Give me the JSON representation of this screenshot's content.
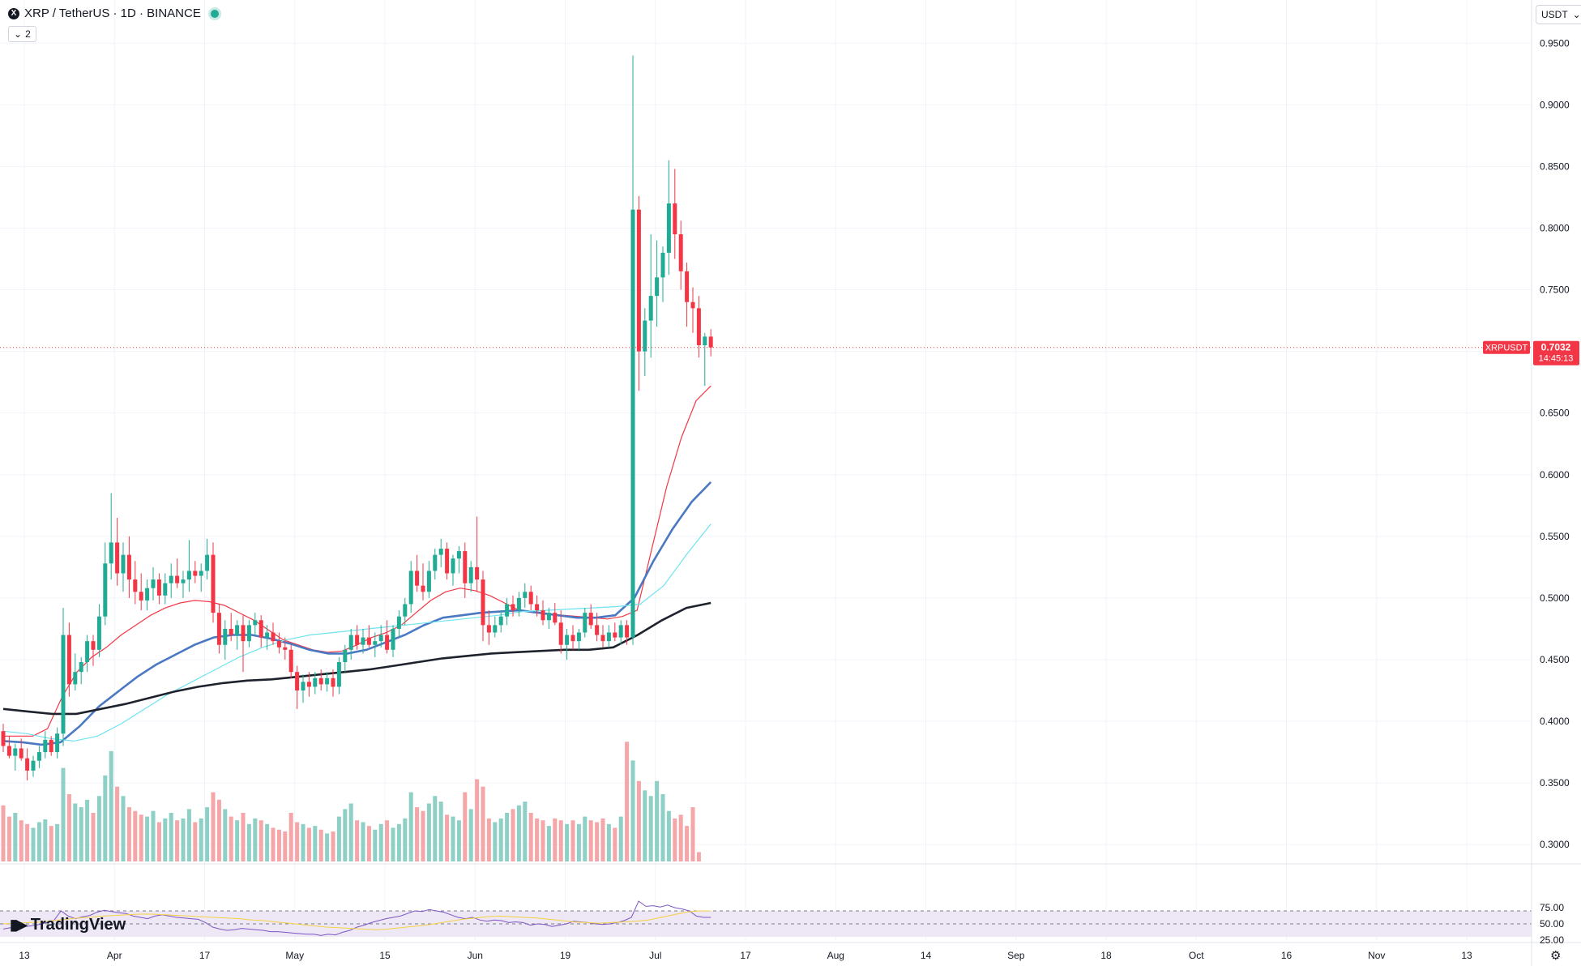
{
  "header": {
    "symbol_logo": "X",
    "title": "XRP / TetherUS · 1D · BINANCE",
    "indicator_count": "2",
    "collapse_icon": "chevron-down-icon",
    "status_color": "#22ab94"
  },
  "currency_selector": {
    "label": "USDT",
    "icon": "chevron-down-icon"
  },
  "price_label": {
    "symbol": "XRPUSDT",
    "price": "0.7032",
    "countdown": "14:45:13",
    "color": "#f23645"
  },
  "branding": {
    "name": "TradingView"
  },
  "settings_icon": "gear-icon",
  "colors": {
    "up": "#22ab94",
    "down": "#f23645",
    "vol_up": "#8fd0c6",
    "vol_down": "#f4a6a8",
    "ma_fast": "#f23645",
    "ma_mid": "#4a78c2",
    "ma_cyan": "#6fe3f0",
    "ma_slow": "#1e222d",
    "rsi_line": "#7e57c2",
    "rsi_ma": "#f5d142",
    "rsi_band": "#ede7f6"
  },
  "chart_data": [
    {
      "type": "candlestick",
      "title": "XRP / TetherUS · 1D · BINANCE",
      "price_axis": {
        "ticks": [
          "0.9500",
          "0.9000",
          "0.8500",
          "0.8000",
          "0.7500",
          "0.7000",
          "0.6500",
          "0.6000",
          "0.5500",
          "0.5000",
          "0.4500",
          "0.4000",
          "0.3500",
          "0.3000"
        ],
        "range": [
          0.285,
          0.985
        ]
      },
      "time_axis": {
        "ticks": [
          "13",
          "Apr",
          "17",
          "May",
          "15",
          "Jun",
          "19",
          "Jul",
          "17",
          "Aug",
          "14",
          "Sep",
          "18",
          "Oct",
          "16",
          "Nov",
          "13"
        ]
      },
      "last_price": 0.7032,
      "candles": [
        [
          0.392,
          0.398,
          0.375,
          0.38
        ],
        [
          0.38,
          0.388,
          0.37,
          0.372
        ],
        [
          0.372,
          0.382,
          0.36,
          0.378
        ],
        [
          0.378,
          0.386,
          0.368,
          0.37
        ],
        [
          0.37,
          0.378,
          0.352,
          0.36
        ],
        [
          0.36,
          0.372,
          0.355,
          0.368
        ],
        [
          0.368,
          0.38,
          0.362,
          0.375
        ],
        [
          0.375,
          0.392,
          0.37,
          0.385
        ],
        [
          0.385,
          0.388,
          0.372,
          0.375
        ],
        [
          0.375,
          0.395,
          0.37,
          0.39
        ],
        [
          0.39,
          0.492,
          0.38,
          0.47
        ],
        [
          0.47,
          0.48,
          0.42,
          0.43
        ],
        [
          0.43,
          0.455,
          0.425,
          0.44
        ],
        [
          0.44,
          0.452,
          0.43,
          0.448
        ],
        [
          0.448,
          0.47,
          0.44,
          0.465
        ],
        [
          0.465,
          0.47,
          0.445,
          0.458
        ],
        [
          0.458,
          0.495,
          0.452,
          0.485
        ],
        [
          0.485,
          0.545,
          0.478,
          0.528
        ],
        [
          0.528,
          0.585,
          0.515,
          0.545
        ],
        [
          0.545,
          0.565,
          0.51,
          0.52
        ],
        [
          0.52,
          0.545,
          0.505,
          0.535
        ],
        [
          0.535,
          0.55,
          0.5,
          0.515
        ],
        [
          0.515,
          0.53,
          0.495,
          0.505
        ],
        [
          0.505,
          0.52,
          0.49,
          0.498
        ],
        [
          0.498,
          0.515,
          0.49,
          0.508
        ],
        [
          0.508,
          0.525,
          0.498,
          0.515
        ],
        [
          0.515,
          0.52,
          0.495,
          0.502
        ],
        [
          0.502,
          0.52,
          0.495,
          0.512
        ],
        [
          0.512,
          0.528,
          0.5,
          0.518
        ],
        [
          0.518,
          0.532,
          0.508,
          0.512
        ],
        [
          0.512,
          0.522,
          0.5,
          0.515
        ],
        [
          0.515,
          0.547,
          0.505,
          0.522
        ],
        [
          0.522,
          0.53,
          0.512,
          0.518
        ],
        [
          0.518,
          0.528,
          0.505,
          0.522
        ],
        [
          0.522,
          0.548,
          0.515,
          0.535
        ],
        [
          0.535,
          0.545,
          0.48,
          0.488
        ],
        [
          0.488,
          0.495,
          0.455,
          0.462
        ],
        [
          0.462,
          0.482,
          0.45,
          0.475
        ],
        [
          0.475,
          0.488,
          0.465,
          0.47
        ],
        [
          0.47,
          0.482,
          0.458,
          0.478
        ],
        [
          0.478,
          0.486,
          0.44,
          0.465
        ],
        [
          0.465,
          0.482,
          0.46,
          0.478
        ],
        [
          0.478,
          0.488,
          0.47,
          0.482
        ],
        [
          0.482,
          0.486,
          0.46,
          0.468
        ],
        [
          0.468,
          0.478,
          0.458,
          0.472
        ],
        [
          0.472,
          0.48,
          0.462,
          0.465
        ],
        [
          0.465,
          0.472,
          0.455,
          0.46
        ],
        [
          0.46,
          0.468,
          0.45,
          0.458
        ],
        [
          0.458,
          0.462,
          0.435,
          0.44
        ],
        [
          0.44,
          0.445,
          0.41,
          0.425
        ],
        [
          0.425,
          0.438,
          0.415,
          0.432
        ],
        [
          0.432,
          0.44,
          0.42,
          0.428
        ],
        [
          0.428,
          0.44,
          0.422,
          0.435
        ],
        [
          0.435,
          0.442,
          0.425,
          0.43
        ],
        [
          0.43,
          0.44,
          0.424,
          0.435
        ],
        [
          0.435,
          0.442,
          0.42,
          0.428
        ],
        [
          0.428,
          0.452,
          0.422,
          0.448
        ],
        [
          0.448,
          0.462,
          0.44,
          0.458
        ],
        [
          0.458,
          0.475,
          0.45,
          0.47
        ],
        [
          0.47,
          0.478,
          0.458,
          0.462
        ],
        [
          0.462,
          0.475,
          0.455,
          0.468
        ],
        [
          0.468,
          0.478,
          0.46,
          0.462
        ],
        [
          0.462,
          0.472,
          0.452,
          0.465
        ],
        [
          0.465,
          0.478,
          0.46,
          0.47
        ],
        [
          0.47,
          0.482,
          0.455,
          0.458
        ],
        [
          0.458,
          0.478,
          0.452,
          0.475
        ],
        [
          0.475,
          0.49,
          0.468,
          0.485
        ],
        [
          0.485,
          0.5,
          0.478,
          0.495
        ],
        [
          0.495,
          0.53,
          0.488,
          0.522
        ],
        [
          0.522,
          0.535,
          0.505,
          0.51
        ],
        [
          0.51,
          0.528,
          0.498,
          0.505
        ],
        [
          0.505,
          0.53,
          0.5,
          0.522
        ],
        [
          0.522,
          0.54,
          0.515,
          0.535
        ],
        [
          0.535,
          0.548,
          0.525,
          0.54
        ],
        [
          0.54,
          0.545,
          0.515,
          0.52
        ],
        [
          0.52,
          0.535,
          0.51,
          0.532
        ],
        [
          0.532,
          0.542,
          0.52,
          0.538
        ],
        [
          0.538,
          0.545,
          0.5,
          0.512
        ],
        [
          0.512,
          0.53,
          0.505,
          0.525
        ],
        [
          0.525,
          0.566,
          0.505,
          0.515
        ],
        [
          0.515,
          0.522,
          0.465,
          0.478
        ],
        [
          0.478,
          0.49,
          0.462,
          0.472
        ],
        [
          0.472,
          0.485,
          0.468,
          0.478
        ],
        [
          0.478,
          0.49,
          0.472,
          0.485
        ],
        [
          0.485,
          0.5,
          0.478,
          0.495
        ],
        [
          0.495,
          0.502,
          0.485,
          0.49
        ],
        [
          0.49,
          0.505,
          0.485,
          0.5
        ],
        [
          0.5,
          0.512,
          0.492,
          0.505
        ],
        [
          0.505,
          0.51,
          0.49,
          0.495
        ],
        [
          0.495,
          0.502,
          0.485,
          0.49
        ],
        [
          0.49,
          0.498,
          0.478,
          0.482
        ],
        [
          0.482,
          0.492,
          0.475,
          0.488
        ],
        [
          0.488,
          0.496,
          0.478,
          0.48
        ],
        [
          0.48,
          0.49,
          0.455,
          0.462
        ],
        [
          0.462,
          0.475,
          0.45,
          0.47
        ],
        [
          0.47,
          0.478,
          0.458,
          0.465
        ],
        [
          0.465,
          0.475,
          0.458,
          0.472
        ],
        [
          0.472,
          0.492,
          0.468,
          0.488
        ],
        [
          0.488,
          0.495,
          0.475,
          0.478
        ],
        [
          0.478,
          0.488,
          0.465,
          0.47
        ],
        [
          0.47,
          0.478,
          0.46,
          0.465
        ],
        [
          0.465,
          0.478,
          0.46,
          0.472
        ],
        [
          0.472,
          0.48,
          0.465,
          0.468
        ],
        [
          0.468,
          0.482,
          0.462,
          0.478
        ],
        [
          0.478,
          0.482,
          0.462,
          0.468
        ],
        [
          0.468,
          0.94,
          0.462,
          0.815
        ],
        [
          0.815,
          0.826,
          0.668,
          0.7
        ],
        [
          0.7,
          0.735,
          0.68,
          0.725
        ],
        [
          0.725,
          0.795,
          0.695,
          0.745
        ],
        [
          0.745,
          0.79,
          0.72,
          0.76
        ],
        [
          0.76,
          0.785,
          0.74,
          0.78
        ],
        [
          0.78,
          0.855,
          0.762,
          0.82
        ],
        [
          0.82,
          0.848,
          0.775,
          0.795
        ],
        [
          0.795,
          0.806,
          0.75,
          0.765
        ],
        [
          0.765,
          0.772,
          0.72,
          0.74
        ],
        [
          0.74,
          0.752,
          0.715,
          0.735
        ],
        [
          0.735,
          0.745,
          0.695,
          0.705
        ],
        [
          0.705,
          0.715,
          0.672,
          0.712
        ],
        [
          0.712,
          0.718,
          0.696,
          0.7032
        ]
      ],
      "volume": [
        60,
        48,
        52,
        44,
        40,
        36,
        42,
        45,
        38,
        40,
        100,
        72,
        62,
        58,
        66,
        52,
        70,
        92,
        118,
        80,
        70,
        58,
        54,
        50,
        48,
        54,
        42,
        46,
        52,
        44,
        46,
        56,
        42,
        46,
        58,
        74,
        66,
        56,
        48,
        44,
        52,
        40,
        46,
        44,
        40,
        36,
        34,
        32,
        52,
        42,
        40,
        36,
        38,
        34,
        30,
        32,
        48,
        56,
        62,
        44,
        42,
        38,
        34,
        40,
        44,
        36,
        40,
        46,
        74,
        58,
        54,
        62,
        70,
        64,
        50,
        48,
        44,
        74,
        56,
        88,
        80,
        46,
        42,
        46,
        52,
        56,
        60,
        64,
        52,
        46,
        44,
        38,
        46,
        44,
        40,
        44,
        40,
        48,
        44,
        42,
        46,
        40,
        36,
        48,
        128,
        108,
        86,
        76,
        70,
        86,
        72,
        54,
        46,
        50,
        38,
        58,
        10
      ],
      "series": [
        {
          "values": [
            0.388,
            0.388,
            0.388,
            0.394,
            0.42,
            0.44,
            0.452,
            0.46,
            0.47,
            0.478,
            0.486,
            0.492,
            0.496,
            0.498,
            0.497,
            0.494,
            0.488,
            0.482,
            0.474,
            0.466,
            0.462,
            0.458,
            0.456,
            0.457,
            0.462,
            0.468,
            0.472,
            0.478,
            0.488,
            0.498,
            0.505,
            0.508,
            0.506,
            0.502,
            0.496,
            0.49,
            0.488,
            0.487,
            0.486,
            0.485,
            0.484,
            0.483,
            0.485,
            0.49,
            0.54,
            0.59,
            0.63,
            0.66,
            0.672
          ]
        },
        {
          "values": [
            0.384,
            0.383,
            0.381,
            0.383,
            0.396,
            0.412,
            0.424,
            0.436,
            0.446,
            0.454,
            0.462,
            0.468,
            0.47,
            0.47,
            0.467,
            0.463,
            0.458,
            0.455,
            0.455,
            0.458,
            0.464,
            0.47,
            0.478,
            0.484,
            0.486,
            0.488,
            0.489,
            0.49,
            0.488,
            0.486,
            0.484,
            0.484,
            0.486,
            0.5,
            0.53,
            0.556,
            0.578,
            0.594
          ]
        },
        {
          "values": [
            0.392,
            0.39,
            0.386,
            0.384,
            0.388,
            0.398,
            0.41,
            0.422,
            0.432,
            0.442,
            0.452,
            0.46,
            0.466,
            0.47,
            0.472,
            0.474,
            0.476,
            0.478,
            0.48,
            0.482,
            0.484,
            0.486,
            0.489,
            0.49,
            0.491,
            0.492,
            0.493,
            0.495,
            0.51,
            0.536,
            0.56
          ]
        },
        {
          "values": [
            0.41,
            0.408,
            0.406,
            0.406,
            0.41,
            0.414,
            0.419,
            0.424,
            0.428,
            0.431,
            0.433,
            0.434,
            0.436,
            0.438,
            0.44,
            0.442,
            0.445,
            0.448,
            0.451,
            0.453,
            0.455,
            0.456,
            0.457,
            0.458,
            0.458,
            0.46,
            0.47,
            0.482,
            0.492,
            0.496
          ]
        }
      ]
    },
    {
      "type": "line",
      "ylim": [
        25,
        100
      ],
      "yticks": [
        "75.00",
        "50.00",
        "25.00"
      ],
      "band": [
        30,
        70
      ],
      "series": [
        {
          "values": [
            42,
            44,
            45,
            46,
            47,
            49,
            52,
            55,
            70,
            62,
            58,
            61,
            63,
            68,
            71,
            69,
            67,
            66,
            62,
            60,
            58,
            62,
            64,
            62,
            60,
            59,
            58,
            57,
            52,
            45,
            42,
            40,
            41,
            43,
            42,
            41,
            40,
            38,
            38,
            37,
            36,
            35,
            34,
            34,
            32,
            34,
            33,
            37,
            40,
            45,
            48,
            52,
            55,
            58,
            60,
            62,
            66,
            70,
            69,
            72,
            70,
            68,
            64,
            60,
            58,
            60,
            56,
            54,
            56,
            55,
            52,
            53,
            52,
            48,
            50,
            49,
            46,
            48,
            50,
            54,
            53,
            52,
            50,
            49,
            50,
            52,
            55,
            60,
            85,
            77,
            78,
            76,
            79,
            75,
            73,
            70,
            62,
            60,
            60
          ]
        },
        {
          "values": [
            50,
            51,
            52,
            53,
            55,
            57,
            59,
            60,
            62,
            63,
            64,
            65,
            65,
            64,
            63,
            62,
            61,
            60,
            59,
            58,
            56,
            55,
            53,
            51,
            49,
            47,
            45,
            44,
            43,
            42,
            41,
            42,
            44,
            46,
            48,
            51,
            54,
            57,
            59,
            61,
            62,
            61,
            60,
            59,
            57,
            55,
            53,
            52,
            51,
            52,
            53,
            54,
            56,
            60,
            64,
            68,
            70,
            70
          ]
        }
      ]
    }
  ]
}
